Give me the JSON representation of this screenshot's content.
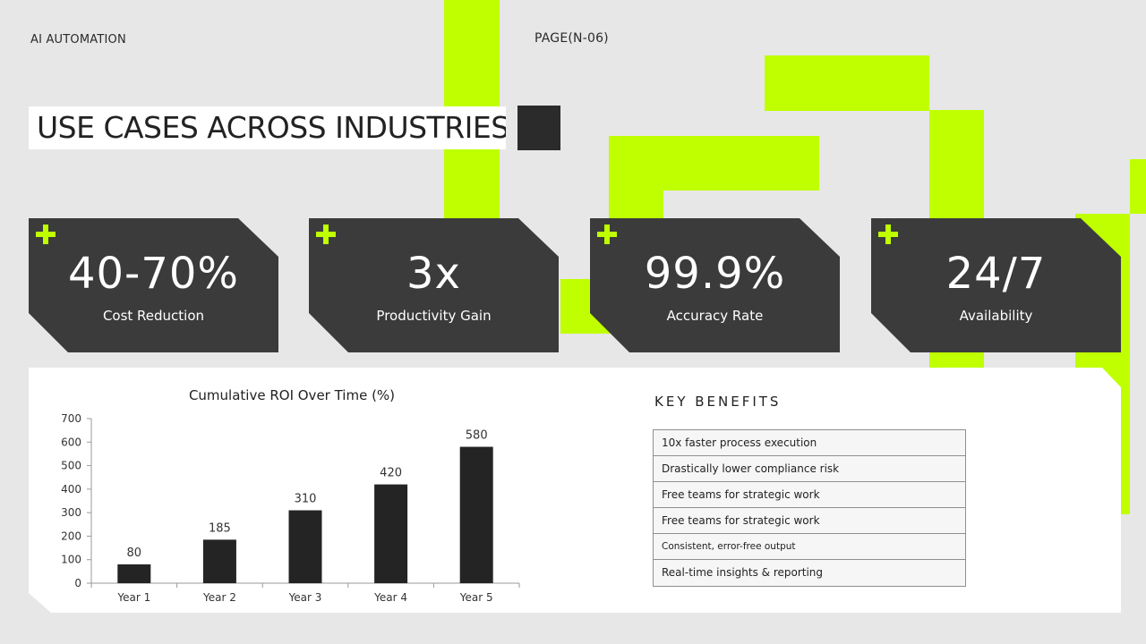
{
  "header": {
    "brand": "AI AUTOMATION",
    "page": "PAGE(N-06)",
    "title": "USE CASES ACROSS INDUSTRIES"
  },
  "colors": {
    "accent": "#bfff00",
    "card": "#3b3b3b",
    "bar": "#242424",
    "background": "#e7e7e7"
  },
  "stats": [
    {
      "icon": "plus-icon",
      "value": "40-70%",
      "label": "Cost Reduction"
    },
    {
      "icon": "plus-icon",
      "value": "3x",
      "label": "Productivity Gain"
    },
    {
      "icon": "plus-icon",
      "value": "99.9%",
      "label": "Accuracy Rate"
    },
    {
      "icon": "plus-icon",
      "value": "24/7",
      "label": "Availability"
    }
  ],
  "chart_data": {
    "type": "bar",
    "title": "Cumulative ROI Over Time (%)",
    "categories": [
      "Year 1",
      "Year 2",
      "Year 3",
      "Year 4",
      "Year 5"
    ],
    "values": [
      80,
      185,
      310,
      420,
      580
    ],
    "ylim": [
      0,
      700
    ],
    "yticks": [
      0,
      100,
      200,
      300,
      400,
      500,
      600,
      700
    ],
    "xlabel": "",
    "ylabel": "",
    "grid": false,
    "legend": "none",
    "data_labels": true
  },
  "key_benefits": {
    "heading": "KEY BENEFITS",
    "items": [
      "10x faster process execution",
      "Drastically lower compliance risk",
      "Free teams for strategic work",
      "Free teams for strategic work",
      "Consistent, error-free output",
      "Real-time insights & reporting"
    ]
  }
}
